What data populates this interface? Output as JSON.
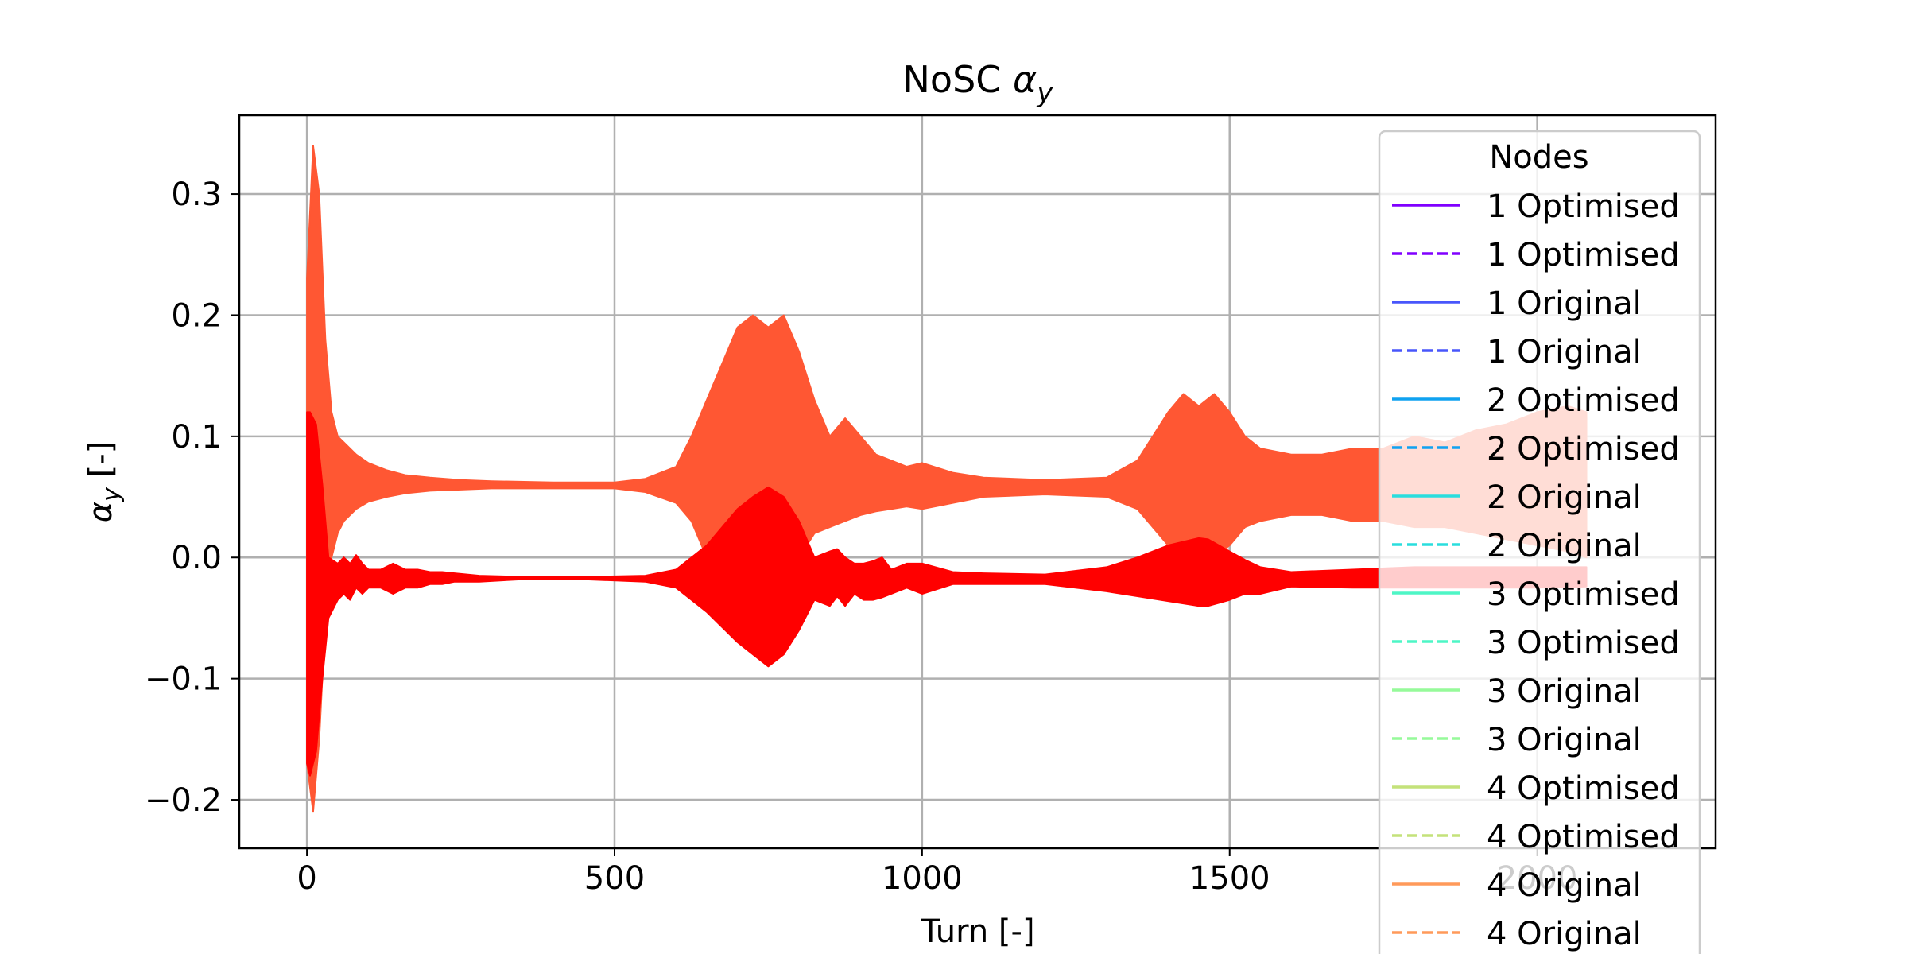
{
  "chart_data": {
    "type": "line",
    "title_prefix": "NoSC ",
    "title_symbol": "α",
    "title_subscript": "y",
    "xlabel": "Turn [-]",
    "ylabel_symbol": "α",
    "ylabel_subscript": "y",
    "ylabel_suffix": " [-]",
    "xlim": [
      -110,
      2290
    ],
    "ylim": [
      -0.24,
      0.365
    ],
    "xticks": [
      0,
      500,
      1000,
      1500,
      2000
    ],
    "xtick_labels": [
      "0",
      "500",
      "1000",
      "1500",
      "2000"
    ],
    "yticks": [
      -0.2,
      -0.1,
      0.0,
      0.1,
      0.2,
      0.3
    ],
    "ytick_labels": [
      "−0.2",
      "−0.1",
      "0.0",
      "0.1",
      "0.2",
      "0.3"
    ],
    "grid": true,
    "legend": {
      "title": "Nodes",
      "placement": "upper right",
      "entries": [
        {
          "label": "1 Optimised",
          "color": "#8000ff",
          "style": "solid"
        },
        {
          "label": "1 Optimised",
          "color": "#8000ff",
          "style": "dashed"
        },
        {
          "label": "1 Original",
          "color": "#4856fb",
          "style": "solid"
        },
        {
          "label": "1 Original",
          "color": "#4856fb",
          "style": "dashed"
        },
        {
          "label": "2 Optimised",
          "color": "#10a2f0",
          "style": "solid"
        },
        {
          "label": "2 Optimised",
          "color": "#10a2f0",
          "style": "dashed"
        },
        {
          "label": "2 Original",
          "color": "#2adddd",
          "style": "solid"
        },
        {
          "label": "2 Original",
          "color": "#2adddd",
          "style": "dashed"
        },
        {
          "label": "3 Optimised",
          "color": "#4ef6c6",
          "style": "solid"
        },
        {
          "label": "3 Optimised",
          "color": "#4ef6c6",
          "style": "dashed"
        },
        {
          "label": "3 Original",
          "color": "#96fa9a",
          "style": "solid"
        },
        {
          "label": "3 Original",
          "color": "#96fa9a",
          "style": "dashed"
        },
        {
          "label": "4 Optimised",
          "color": "#c4e27a",
          "style": "solid"
        },
        {
          "label": "4 Optimised",
          "color": "#c4e27a",
          "style": "dashed"
        },
        {
          "label": "4 Original",
          "color": "#ff9a5a",
          "style": "solid"
        },
        {
          "label": "4 Original",
          "color": "#ff9a5a",
          "style": "dashed"
        }
      ]
    },
    "series": [
      {
        "color": "#ff5733",
        "x": [
          0,
          10,
          20,
          30,
          40,
          50,
          60,
          80,
          100,
          130,
          160,
          200,
          250,
          300,
          400,
          500,
          550,
          600,
          625,
          650,
          675,
          700,
          725,
          750,
          775,
          800,
          825,
          850,
          875,
          900,
          925,
          950,
          975,
          1000,
          1050,
          1100,
          1200,
          1300,
          1350,
          1375,
          1400,
          1425,
          1450,
          1475,
          1500,
          1525,
          1550,
          1600,
          1650,
          1700,
          1750,
          1800,
          1850,
          1900,
          1950,
          2000,
          2050,
          2080
        ],
        "upper": [
          0.23,
          0.34,
          0.3,
          0.18,
          0.12,
          0.1,
          0.095,
          0.085,
          0.078,
          0.072,
          0.068,
          0.066,
          0.064,
          0.063,
          0.062,
          0.062,
          0.065,
          0.075,
          0.1,
          0.13,
          0.16,
          0.19,
          0.2,
          0.19,
          0.2,
          0.17,
          0.13,
          0.1,
          0.115,
          0.1,
          0.085,
          0.08,
          0.075,
          0.078,
          0.07,
          0.066,
          0.064,
          0.066,
          0.08,
          0.1,
          0.12,
          0.135,
          0.125,
          0.135,
          0.12,
          0.1,
          0.09,
          0.085,
          0.085,
          0.09,
          0.09,
          0.1,
          0.095,
          0.105,
          0.11,
          0.12,
          0.125,
          0.12
        ],
        "lower": [
          -0.17,
          -0.21,
          -0.15,
          -0.05,
          0.0,
          0.02,
          0.03,
          0.04,
          0.046,
          0.05,
          0.053,
          0.055,
          0.056,
          0.057,
          0.057,
          0.057,
          0.054,
          0.045,
          0.03,
          0.0,
          -0.01,
          -0.02,
          -0.02,
          -0.02,
          -0.02,
          0.0,
          0.02,
          0.025,
          0.03,
          0.035,
          0.038,
          0.04,
          0.042,
          0.04,
          0.045,
          0.05,
          0.052,
          0.05,
          0.04,
          0.025,
          0.01,
          0.0,
          0.005,
          0.0,
          0.01,
          0.025,
          0.03,
          0.035,
          0.035,
          0.03,
          0.03,
          0.025,
          0.025,
          0.02,
          0.015,
          0.01,
          0.005,
          0.0
        ]
      },
      {
        "color": "#ff0000",
        "x": [
          0,
          5,
          15,
          25,
          35,
          50,
          60,
          70,
          80,
          90,
          100,
          120,
          140,
          160,
          180,
          200,
          220,
          240,
          280,
          350,
          450,
          550,
          600,
          650,
          700,
          725,
          750,
          775,
          800,
          825,
          850,
          862,
          875,
          890,
          905,
          920,
          935,
          950,
          975,
          1000,
          1050,
          1100,
          1200,
          1300,
          1350,
          1400,
          1450,
          1465,
          1500,
          1525,
          1550,
          1600,
          1700,
          1800,
          1900,
          2000,
          2080
        ],
        "upper": [
          0.12,
          0.12,
          0.11,
          0.06,
          0.0,
          -0.005,
          0.0,
          -0.005,
          0.002,
          -0.005,
          -0.01,
          -0.01,
          -0.005,
          -0.01,
          -0.01,
          -0.012,
          -0.012,
          -0.013,
          -0.015,
          -0.016,
          -0.016,
          -0.015,
          -0.01,
          0.01,
          0.04,
          0.05,
          0.058,
          0.05,
          0.03,
          0.0,
          0.005,
          0.007,
          0.0,
          -0.005,
          -0.005,
          -0.003,
          0.0,
          -0.01,
          -0.005,
          -0.005,
          -0.012,
          -0.013,
          -0.014,
          -0.008,
          0.0,
          0.01,
          0.016,
          0.015,
          0.005,
          -0.002,
          -0.008,
          -0.012,
          -0.01,
          -0.008,
          -0.008,
          -0.008,
          -0.008
        ],
        "lower": [
          -0.17,
          -0.18,
          -0.16,
          -0.1,
          -0.05,
          -0.035,
          -0.03,
          -0.035,
          -0.025,
          -0.03,
          -0.025,
          -0.025,
          -0.03,
          -0.025,
          -0.025,
          -0.022,
          -0.022,
          -0.02,
          -0.02,
          -0.018,
          -0.018,
          -0.02,
          -0.025,
          -0.045,
          -0.07,
          -0.08,
          -0.09,
          -0.08,
          -0.06,
          -0.035,
          -0.04,
          -0.032,
          -0.04,
          -0.03,
          -0.035,
          -0.035,
          -0.033,
          -0.03,
          -0.025,
          -0.03,
          -0.022,
          -0.022,
          -0.022,
          -0.028,
          -0.032,
          -0.036,
          -0.04,
          -0.04,
          -0.035,
          -0.03,
          -0.03,
          -0.024,
          -0.025,
          -0.025,
          -0.025,
          -0.025,
          -0.024
        ]
      }
    ]
  }
}
